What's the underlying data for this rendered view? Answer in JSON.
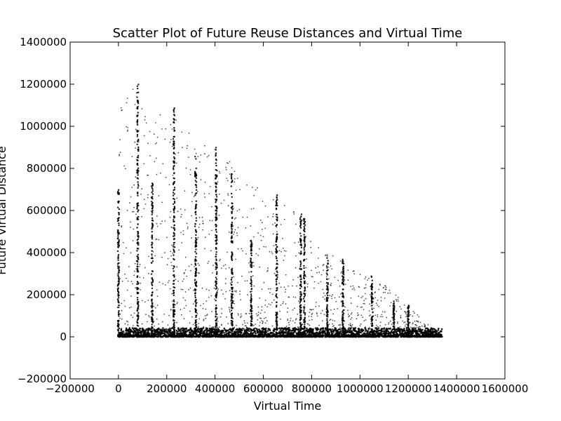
{
  "chart_data": {
    "type": "scatter",
    "title": "Scatter Plot of Future Reuse Distances and Virtual Time",
    "xlabel": "Virtual Time",
    "ylabel": "Future Virtual Distance",
    "xlim": [
      -200000,
      1600000
    ],
    "ylim": [
      -200000,
      1400000
    ],
    "x_ticks": [
      -200000,
      0,
      200000,
      400000,
      600000,
      800000,
      1000000,
      1200000,
      1400000,
      1600000
    ],
    "y_ticks": [
      -200000,
      0,
      200000,
      400000,
      600000,
      800000,
      1000000,
      1200000,
      1400000
    ],
    "grid": false,
    "legend": "none",
    "point_color": "#000000",
    "x_max_observed": 1340000,
    "dense_band_max_y": 30000,
    "vertical_streaks": [
      {
        "x": 0,
        "y_top": 700000
      },
      {
        "x": 80000,
        "y_top": 1200000
      },
      {
        "x": 140000,
        "y_top": 730000
      },
      {
        "x": 230000,
        "y_top": 1100000
      },
      {
        "x": 320000,
        "y_top": 870000
      },
      {
        "x": 405000,
        "y_top": 920000
      },
      {
        "x": 470000,
        "y_top": 780000
      },
      {
        "x": 550000,
        "y_top": 480000
      },
      {
        "x": 655000,
        "y_top": 680000
      },
      {
        "x": 755000,
        "y_top": 590000
      },
      {
        "x": 770000,
        "y_top": 580000
      },
      {
        "x": 865000,
        "y_top": 380000
      },
      {
        "x": 930000,
        "y_top": 380000
      },
      {
        "x": 1050000,
        "y_top": 300000
      },
      {
        "x": 1140000,
        "y_top": 170000
      },
      {
        "x": 1200000,
        "y_top": 150000
      }
    ],
    "diagonal_upper_bound": [
      [
        0,
        1230000
      ],
      [
        300000,
        980000
      ],
      [
        520000,
        780000
      ],
      [
        700000,
        640000
      ],
      [
        900000,
        380000
      ],
      [
        1100000,
        250000
      ],
      [
        1340000,
        0
      ]
    ]
  }
}
